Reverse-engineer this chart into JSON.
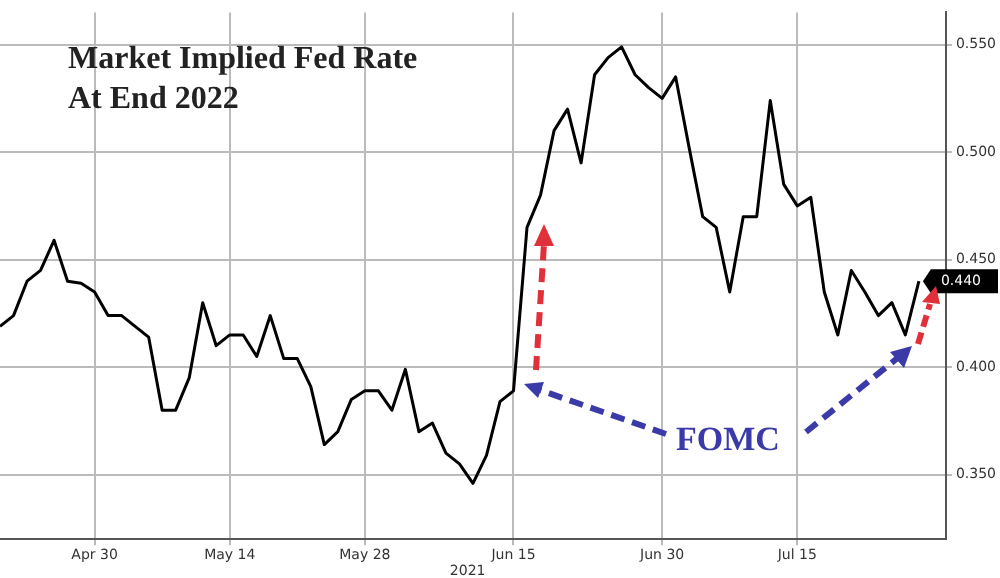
{
  "chart_data": {
    "type": "line",
    "title": "Market Implied Fed Rate At End 2022",
    "categories": [
      null,
      null,
      null,
      null,
      null,
      null,
      null,
      "Apr 30",
      null,
      null,
      null,
      null,
      null,
      null,
      null,
      null,
      null,
      "May 14",
      null,
      null,
      null,
      null,
      null,
      null,
      null,
      null,
      null,
      "May 28",
      null,
      null,
      null,
      null,
      null,
      null,
      null,
      null,
      null,
      null,
      "Jun 15",
      null,
      null,
      null,
      null,
      null,
      null,
      null,
      null,
      null,
      null,
      "Jun 30",
      null,
      null,
      null,
      null,
      null,
      null,
      null,
      null,
      null,
      "Jul 15",
      null,
      null,
      null,
      null,
      null,
      null,
      null,
      null,
      null
    ],
    "series": [
      {
        "color": "#000000",
        "values": [
          0.419,
          0.424,
          0.44,
          0.445,
          0.459,
          0.44,
          0.439,
          0.435,
          0.424,
          0.424,
          0.419,
          0.414,
          0.38,
          0.38,
          0.395,
          0.43,
          0.41,
          0.415,
          0.415,
          0.405,
          0.424,
          0.404,
          0.404,
          0.391,
          0.364,
          0.37,
          0.385,
          0.389,
          0.389,
          0.38,
          0.399,
          0.37,
          0.374,
          0.36,
          0.355,
          0.346,
          0.359,
          0.384,
          0.389,
          0.465,
          0.48,
          0.51,
          0.52,
          0.495,
          0.536,
          0.544,
          0.549,
          0.536,
          0.53,
          0.525,
          0.535,
          0.502,
          0.47,
          0.465,
          0.435,
          0.47,
          0.47,
          0.524,
          0.485,
          0.475,
          0.479,
          0.435,
          0.415,
          0.445,
          0.435,
          0.424,
          0.43,
          0.415,
          0.44
        ],
        "value_labels": [
          null,
          null,
          null,
          null,
          null,
          null,
          null,
          null,
          null,
          null,
          null,
          null,
          null,
          null,
          null,
          null,
          null,
          null,
          null,
          null,
          null,
          null,
          null,
          null,
          null,
          null,
          null,
          null,
          null,
          null,
          null,
          null,
          null,
          null,
          null,
          null,
          null,
          null,
          null,
          null,
          null,
          null,
          null,
          null,
          null,
          null,
          null,
          null,
          null,
          null,
          null,
          null,
          null,
          null,
          null,
          null,
          null,
          null,
          null,
          null,
          null,
          null,
          null,
          null,
          null,
          null,
          null,
          null,
          "0.440"
        ]
      }
    ],
    "ylim": [
      0.32,
      0.565
    ],
    "yticks": [
      {
        "value": 0.35,
        "label": "0.350"
      },
      {
        "value": 0.4,
        "label": "0.400"
      },
      {
        "value": 0.45,
        "label": "0.450"
      },
      {
        "value": 0.5,
        "label": "0.500"
      },
      {
        "value": 0.55,
        "label": "0.550"
      }
    ],
    "grid": true,
    "legend": false,
    "marker": "none",
    "line_style": "solid",
    "annotations": [
      "2021",
      "FOMC"
    ]
  }
}
